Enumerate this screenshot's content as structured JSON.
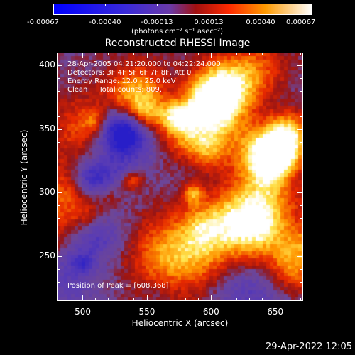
{
  "colorbar": {
    "tick_labels": [
      "-0.00067",
      "-0.00040",
      "-0.00013",
      "0.00013",
      "0.00040",
      "0.00067"
    ],
    "units": "(photons cm⁻² s⁻¹ asec⁻²)",
    "range": [
      -0.00067,
      0.00067
    ]
  },
  "title": "Reconstructed RHESSI Image",
  "info": {
    "line1": "28-Apr-2005 04:21:20.000 to 04:22:24.000",
    "line2": "Detectors: 3F 4F 5F 6F 7F 8F, Att 0",
    "line3": "Energy Range: 12.0 - 25.0 keV",
    "line4": "Clean     Total counts: 809."
  },
  "peak": "Position of Peak = [608,368]",
  "axes": {
    "x_label": "Heliocentric X (arcsec)",
    "y_label": "Heliocentric Y (arcsec)",
    "x_range": [
      480,
      672
    ],
    "y_range": [
      215,
      410
    ],
    "x_ticks": [
      500,
      550,
      600,
      650
    ],
    "y_ticks": [
      250,
      300,
      350,
      400
    ]
  },
  "timestamp": "29-Apr-2022 12:05"
}
